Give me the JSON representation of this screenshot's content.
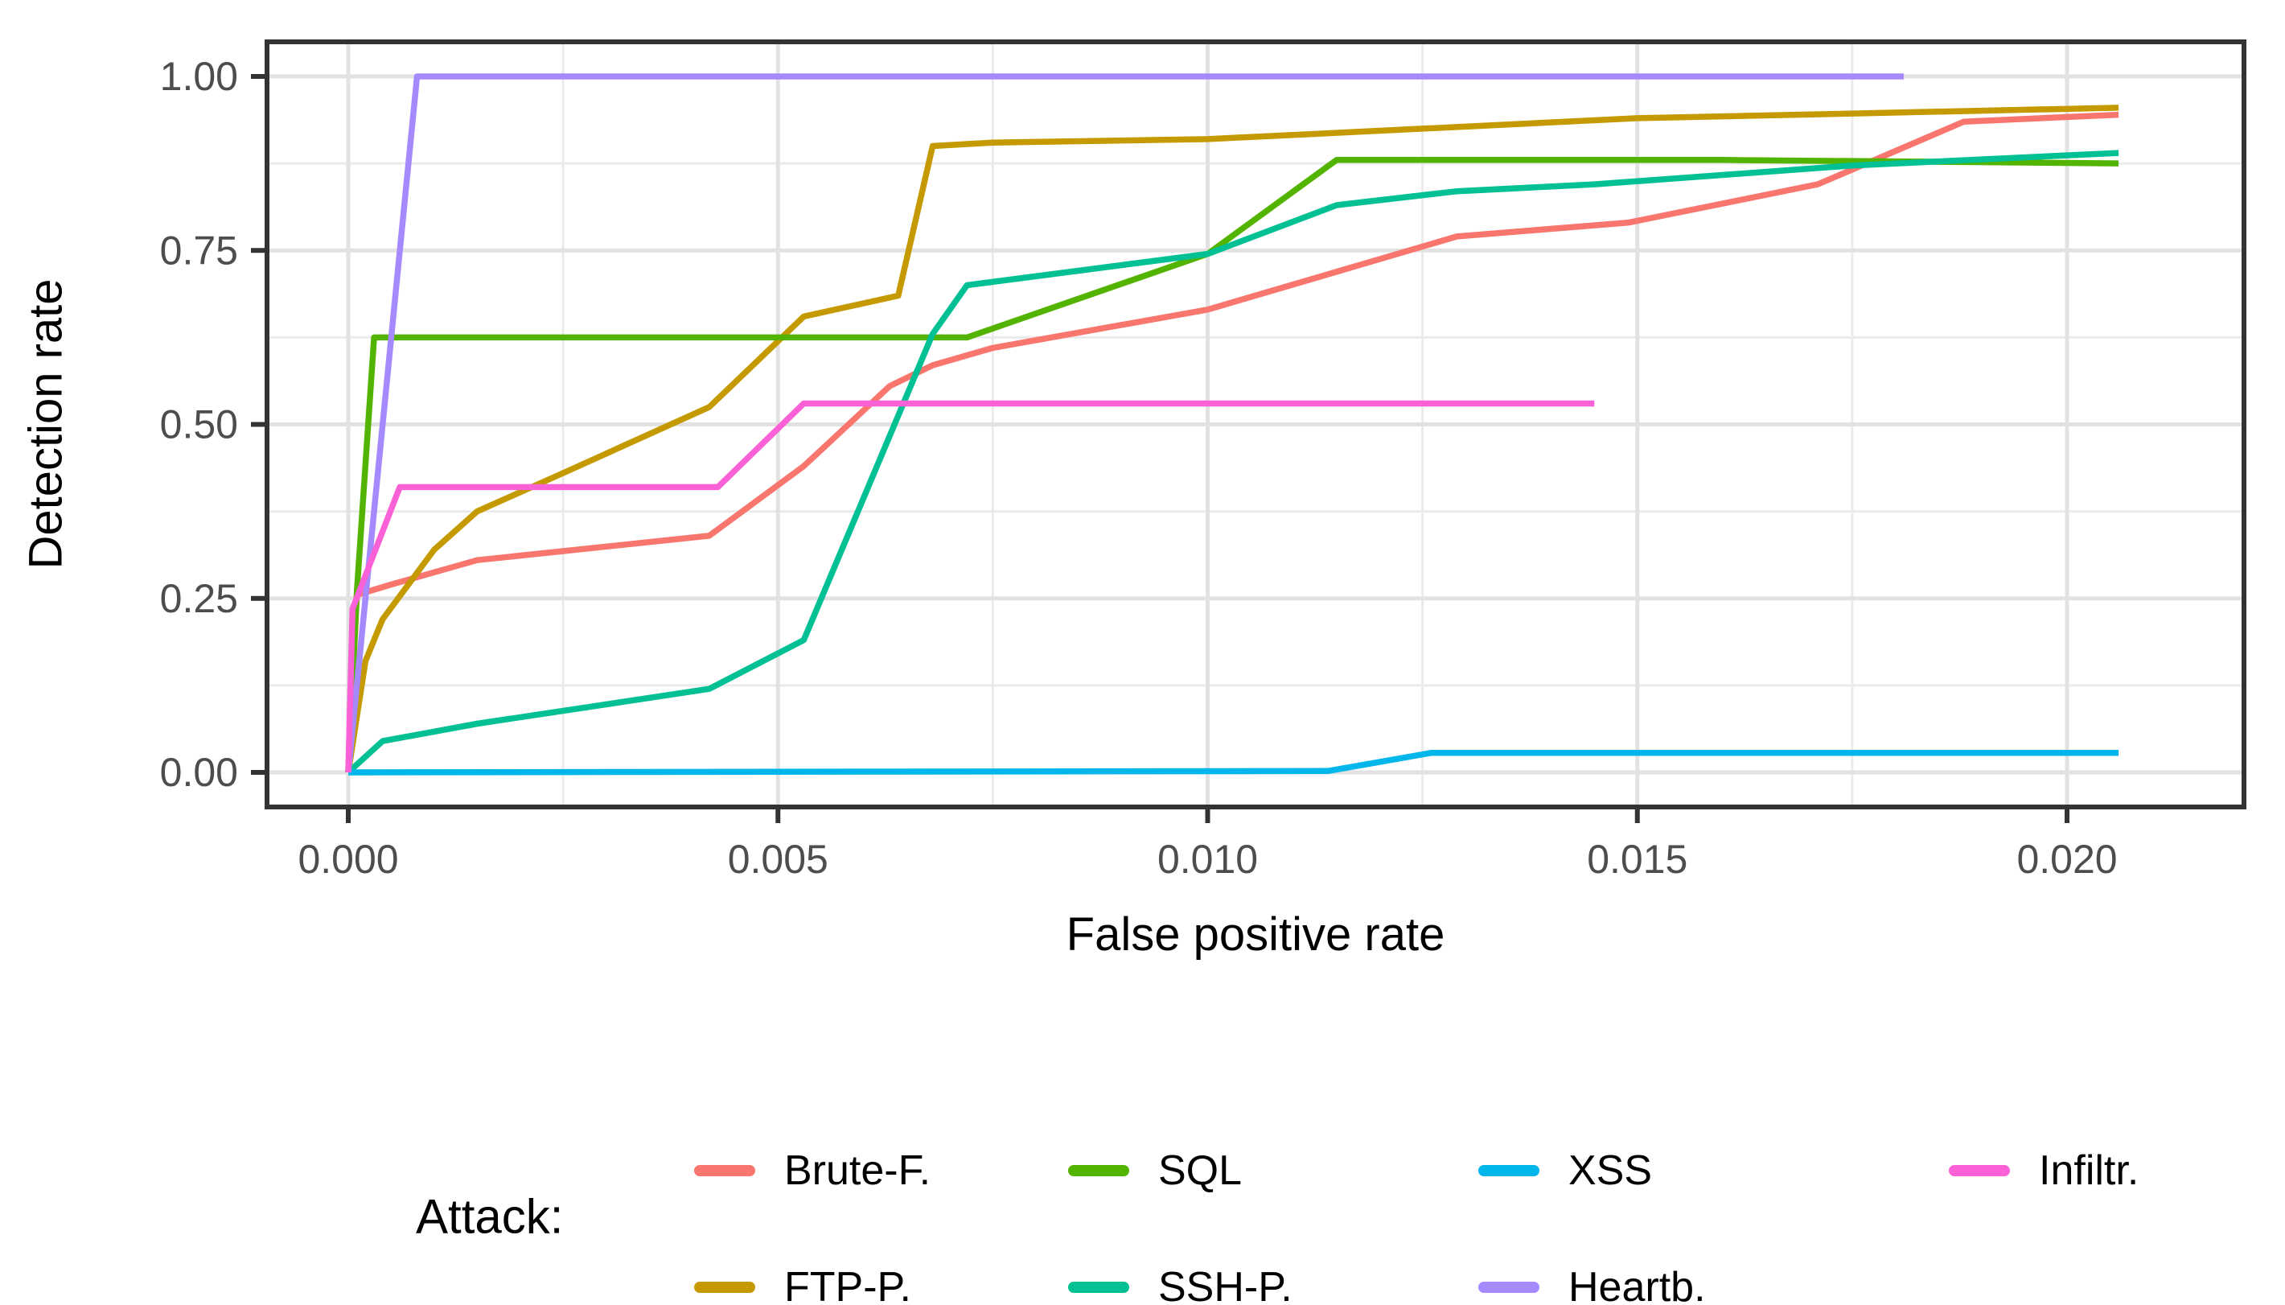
{
  "chart_data": {
    "type": "line",
    "title": "",
    "xlabel": "False positive rate",
    "ylabel": "Detection rate",
    "legend_title": "Attack:",
    "legend_position": "bottom",
    "grid": "on",
    "xlim": [
      -0.00095,
      0.02205
    ],
    "ylim": [
      -0.05,
      1.05
    ],
    "x_ticks": {
      "values": [
        0,
        0.005,
        0.01,
        0.015,
        0.02
      ],
      "labels": [
        "0.000",
        "0.005",
        "0.010",
        "0.015",
        "0.020"
      ]
    },
    "y_ticks": {
      "values": [
        0,
        0.25,
        0.5,
        0.75,
        1
      ],
      "labels": [
        "0.00",
        "0.25",
        "0.50",
        "0.75",
        "1.00"
      ]
    },
    "x_minor": [
      0.0025,
      0.0075,
      0.0125,
      0.0175
    ],
    "y_minor": [
      0.125,
      0.375,
      0.625,
      0.875
    ],
    "series": [
      {
        "name": "Brute-F.",
        "color": "#F8766D",
        "points": [
          [
            0,
            0
          ],
          [
            0.0001,
            0.255
          ],
          [
            0.0005,
            0.27
          ],
          [
            0.0015,
            0.305
          ],
          [
            0.0042,
            0.34
          ],
          [
            0.0053,
            0.44
          ],
          [
            0.0063,
            0.555
          ],
          [
            0.0068,
            0.585
          ],
          [
            0.0075,
            0.61
          ],
          [
            0.01,
            0.665
          ],
          [
            0.0129,
            0.77
          ],
          [
            0.0149,
            0.79
          ],
          [
            0.0171,
            0.845
          ],
          [
            0.0188,
            0.935
          ],
          [
            0.0206,
            0.945
          ]
        ]
      },
      {
        "name": "FTP-P.",
        "color": "#C49A00",
        "points": [
          [
            0,
            0
          ],
          [
            0.0002,
            0.16
          ],
          [
            0.0004,
            0.22
          ],
          [
            0.001,
            0.32
          ],
          [
            0.0015,
            0.375
          ],
          [
            0.0025,
            0.43
          ],
          [
            0.0042,
            0.525
          ],
          [
            0.0053,
            0.655
          ],
          [
            0.0064,
            0.685
          ],
          [
            0.0068,
            0.9
          ],
          [
            0.0075,
            0.905
          ],
          [
            0.01,
            0.91
          ],
          [
            0.0125,
            0.925
          ],
          [
            0.015,
            0.94
          ],
          [
            0.0206,
            0.955
          ]
        ]
      },
      {
        "name": "SQL",
        "color": "#53B400",
        "points": [
          [
            0,
            0
          ],
          [
            0.0001,
            0.26
          ],
          [
            0.0003,
            0.625
          ],
          [
            0.0072,
            0.625
          ],
          [
            0.01,
            0.745
          ],
          [
            0.0115,
            0.88
          ],
          [
            0.016,
            0.88
          ],
          [
            0.0206,
            0.875
          ]
        ]
      },
      {
        "name": "SSH-P.",
        "color": "#00C094",
        "points": [
          [
            0,
            0
          ],
          [
            0.0004,
            0.045
          ],
          [
            0.0015,
            0.07
          ],
          [
            0.0042,
            0.12
          ],
          [
            0.0053,
            0.19
          ],
          [
            0.0068,
            0.63
          ],
          [
            0.0072,
            0.7
          ],
          [
            0.01,
            0.745
          ],
          [
            0.0115,
            0.815
          ],
          [
            0.0129,
            0.835
          ],
          [
            0.0145,
            0.845
          ],
          [
            0.0175,
            0.872
          ],
          [
            0.0206,
            0.89
          ]
        ]
      },
      {
        "name": "XSS",
        "color": "#00B6EB",
        "points": [
          [
            0,
            0
          ],
          [
            0.0114,
            0.002
          ],
          [
            0.0126,
            0.028
          ],
          [
            0.0206,
            0.028
          ]
        ]
      },
      {
        "name": "Heartb.",
        "color": "#A58AFF",
        "points": [
          [
            0,
            0
          ],
          [
            0.0008,
            1.0
          ],
          [
            0.0181,
            1.0
          ]
        ]
      },
      {
        "name": "Infiltr.",
        "color": "#FB61D7",
        "points": [
          [
            0,
            0
          ],
          [
            5e-05,
            0.235
          ],
          [
            0.0006,
            0.41
          ],
          [
            0.0043,
            0.41
          ],
          [
            0.0053,
            0.53
          ],
          [
            0.0145,
            0.53
          ]
        ]
      }
    ]
  }
}
